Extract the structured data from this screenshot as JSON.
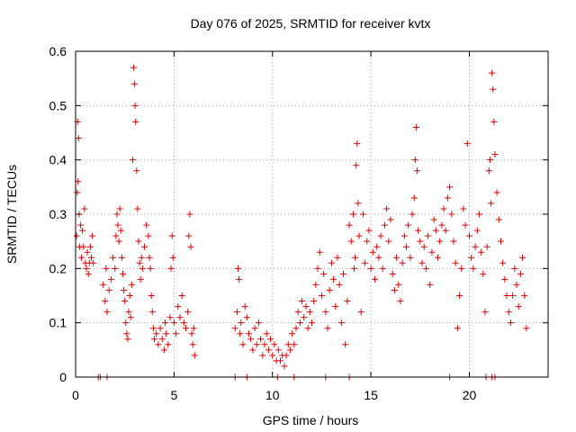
{
  "chart_data": {
    "type": "scatter",
    "title": "Day 076 of 2025, SRMTID for receiver kvtx",
    "xlabel": "GPS time / hours",
    "ylabel": "SRMTID / TECUs",
    "xlim": [
      0,
      24
    ],
    "ylim": [
      0,
      0.6
    ],
    "xticks": [
      0,
      5,
      10,
      15,
      20
    ],
    "yticks": [
      0,
      0.1,
      0.2,
      0.3,
      0.4,
      0.5,
      0.6
    ],
    "xtick_labels": [
      "0",
      "5",
      "10",
      "15",
      "20"
    ],
    "ytick_labels": [
      "0",
      "0.1",
      "0.2",
      "0.3",
      "0.4",
      "0.5",
      "0.6"
    ],
    "grid": true,
    "marker": "+",
    "color": "#e00000",
    "series": [
      {
        "name": "SRMTID",
        "points": [
          [
            0.05,
            0.26
          ],
          [
            0.08,
            0.34
          ],
          [
            0.1,
            0.47
          ],
          [
            0.12,
            0.36
          ],
          [
            0.15,
            0.44
          ],
          [
            0.18,
            0.3
          ],
          [
            0.2,
            0.24
          ],
          [
            0.25,
            0.28
          ],
          [
            0.3,
            0.22
          ],
          [
            0.35,
            0.27
          ],
          [
            0.4,
            0.24
          ],
          [
            0.45,
            0.31
          ],
          [
            0.5,
            0.21
          ],
          [
            0.55,
            0.2
          ],
          [
            0.6,
            0.23
          ],
          [
            0.65,
            0.19
          ],
          [
            0.7,
            0.21
          ],
          [
            0.75,
            0.24
          ],
          [
            0.8,
            0.22
          ],
          [
            0.85,
            0.26
          ],
          [
            0.9,
            0.21
          ],
          [
            1.4,
            0.17
          ],
          [
            1.5,
            0.14
          ],
          [
            1.55,
            0.2
          ],
          [
            1.6,
            0.12
          ],
          [
            1.7,
            0.16
          ],
          [
            1.8,
            0.18
          ],
          [
            1.9,
            0.22
          ],
          [
            2.0,
            0.2
          ],
          [
            2.05,
            0.26
          ],
          [
            2.1,
            0.3
          ],
          [
            2.15,
            0.28
          ],
          [
            2.2,
            0.25
          ],
          [
            2.25,
            0.31
          ],
          [
            2.3,
            0.27
          ],
          [
            2.35,
            0.22
          ],
          [
            2.4,
            0.19
          ],
          [
            2.45,
            0.16
          ],
          [
            2.5,
            0.14
          ],
          [
            2.55,
            0.1
          ],
          [
            2.6,
            0.08
          ],
          [
            2.65,
            0.07
          ],
          [
            2.7,
            0.12
          ],
          [
            2.75,
            0.15
          ],
          [
            2.8,
            0.11
          ],
          [
            2.85,
            0.17
          ],
          [
            2.9,
            0.4
          ],
          [
            2.95,
            0.57
          ],
          [
            3.0,
            0.54
          ],
          [
            3.02,
            0.5
          ],
          [
            3.05,
            0.47
          ],
          [
            3.1,
            0.38
          ],
          [
            3.15,
            0.31
          ],
          [
            3.2,
            0.25
          ],
          [
            3.25,
            0.21
          ],
          [
            3.3,
            0.18
          ],
          [
            3.35,
            0.22
          ],
          [
            3.4,
            0.2
          ],
          [
            3.5,
            0.24
          ],
          [
            3.6,
            0.28
          ],
          [
            3.7,
            0.26
          ],
          [
            3.75,
            0.22
          ],
          [
            3.8,
            0.2
          ],
          [
            3.85,
            0.15
          ],
          [
            3.9,
            0.12
          ],
          [
            3.95,
            0.09
          ],
          [
            4.0,
            0.07
          ],
          [
            4.1,
            0.08
          ],
          [
            4.2,
            0.06
          ],
          [
            4.3,
            0.09
          ],
          [
            4.4,
            0.07
          ],
          [
            4.5,
            0.05
          ],
          [
            4.55,
            0.1
          ],
          [
            4.6,
            0.08
          ],
          [
            4.7,
            0.06
          ],
          [
            4.8,
            0.11
          ],
          [
            4.85,
            0.2
          ],
          [
            4.9,
            0.26
          ],
          [
            4.95,
            0.22
          ],
          [
            5.0,
            0.1
          ],
          [
            5.1,
            0.08
          ],
          [
            5.2,
            0.13
          ],
          [
            5.3,
            0.11
          ],
          [
            5.4,
            0.15
          ],
          [
            5.5,
            0.1
          ],
          [
            5.6,
            0.09
          ],
          [
            5.7,
            0.12
          ],
          [
            5.75,
            0.26
          ],
          [
            5.8,
            0.3
          ],
          [
            5.85,
            0.24
          ],
          [
            5.9,
            0.08
          ],
          [
            5.95,
            0.06
          ],
          [
            6.0,
            0.09
          ],
          [
            6.05,
            0.04
          ],
          [
            8.1,
            0.09
          ],
          [
            8.2,
            0.12
          ],
          [
            8.25,
            0.2
          ],
          [
            8.3,
            0.18
          ],
          [
            8.35,
            0.08
          ],
          [
            8.4,
            0.1
          ],
          [
            8.5,
            0.06
          ],
          [
            8.6,
            0.13
          ],
          [
            8.7,
            0.11
          ],
          [
            8.8,
            0.08
          ],
          [
            8.9,
            0.07
          ],
          [
            9.0,
            0.05
          ],
          [
            9.1,
            0.09
          ],
          [
            9.2,
            0.06
          ],
          [
            9.3,
            0.1
          ],
          [
            9.4,
            0.07
          ],
          [
            9.5,
            0.04
          ],
          [
            9.6,
            0.06
          ],
          [
            9.7,
            0.08
          ],
          [
            9.8,
            0.05
          ],
          [
            9.9,
            0.07
          ],
          [
            10.0,
            0.04
          ],
          [
            10.1,
            0.06
          ],
          [
            10.2,
            0.03
          ],
          [
            10.3,
            0.05
          ],
          [
            10.4,
            0.03
          ],
          [
            10.5,
            0.04
          ],
          [
            10.6,
            0.02
          ],
          [
            10.7,
            0.04
          ],
          [
            10.8,
            0.06
          ],
          [
            10.9,
            0.05
          ],
          [
            11.0,
            0.08
          ],
          [
            11.1,
            0.06
          ],
          [
            11.2,
            0.09
          ],
          [
            11.3,
            0.12
          ],
          [
            11.4,
            0.1
          ],
          [
            11.5,
            0.14
          ],
          [
            11.6,
            0.11
          ],
          [
            11.7,
            0.13
          ],
          [
            11.8,
            0.09
          ],
          [
            11.9,
            0.12
          ],
          [
            12.0,
            0.1
          ],
          [
            12.1,
            0.14
          ],
          [
            12.2,
            0.17
          ],
          [
            12.3,
            0.2
          ],
          [
            12.4,
            0.23
          ],
          [
            12.5,
            0.15
          ],
          [
            12.6,
            0.19
          ],
          [
            12.7,
            0.12
          ],
          [
            12.8,
            0.09
          ],
          [
            12.9,
            0.16
          ],
          [
            13.0,
            0.21
          ],
          [
            13.1,
            0.18
          ],
          [
            13.2,
            0.13
          ],
          [
            13.3,
            0.22
          ],
          [
            13.4,
            0.17
          ],
          [
            13.5,
            0.1
          ],
          [
            13.6,
            0.19
          ],
          [
            13.7,
            0.06
          ],
          [
            13.8,
            0.14
          ],
          [
            13.9,
            0.28
          ],
          [
            14.0,
            0.25
          ],
          [
            14.1,
            0.3
          ],
          [
            14.15,
            0.2
          ],
          [
            14.2,
            0.22
          ],
          [
            14.25,
            0.39
          ],
          [
            14.3,
            0.43
          ],
          [
            14.35,
            0.32
          ],
          [
            14.4,
            0.26
          ],
          [
            14.5,
            0.12
          ],
          [
            14.6,
            0.3
          ],
          [
            14.7,
            0.21
          ],
          [
            14.8,
            0.25
          ],
          [
            14.9,
            0.27
          ],
          [
            15.0,
            0.2
          ],
          [
            15.1,
            0.23
          ],
          [
            15.2,
            0.18
          ],
          [
            15.3,
            0.24
          ],
          [
            15.4,
            0.22
          ],
          [
            15.5,
            0.26
          ],
          [
            15.6,
            0.2
          ],
          [
            15.7,
            0.28
          ],
          [
            15.8,
            0.31
          ],
          [
            15.9,
            0.25
          ],
          [
            16.0,
            0.29
          ],
          [
            16.1,
            0.19
          ],
          [
            16.2,
            0.16
          ],
          [
            16.3,
            0.22
          ],
          [
            16.4,
            0.17
          ],
          [
            16.5,
            0.14
          ],
          [
            16.6,
            0.21
          ],
          [
            16.7,
            0.26
          ],
          [
            16.8,
            0.24
          ],
          [
            16.9,
            0.28
          ],
          [
            17.0,
            0.22
          ],
          [
            17.1,
            0.3
          ],
          [
            17.2,
            0.33
          ],
          [
            17.25,
            0.4
          ],
          [
            17.3,
            0.46
          ],
          [
            17.35,
            0.38
          ],
          [
            17.4,
            0.27
          ],
          [
            17.5,
            0.25
          ],
          [
            17.6,
            0.21
          ],
          [
            17.7,
            0.24
          ],
          [
            17.8,
            0.2
          ],
          [
            17.9,
            0.26
          ],
          [
            18.0,
            0.17
          ],
          [
            18.1,
            0.23
          ],
          [
            18.2,
            0.29
          ],
          [
            18.3,
            0.27
          ],
          [
            18.4,
            0.22
          ],
          [
            18.5,
            0.25
          ],
          [
            18.6,
            0.28
          ],
          [
            18.7,
            0.31
          ],
          [
            18.8,
            0.27
          ],
          [
            18.9,
            0.33
          ],
          [
            19.0,
            0.35
          ],
          [
            19.1,
            0.3
          ],
          [
            19.2,
            0.25
          ],
          [
            19.3,
            0.21
          ],
          [
            19.4,
            0.09
          ],
          [
            19.5,
            0.15
          ],
          [
            19.6,
            0.2
          ],
          [
            19.7,
            0.31
          ],
          [
            19.8,
            0.28
          ],
          [
            19.9,
            0.43
          ],
          [
            20.0,
            0.26
          ],
          [
            20.1,
            0.22
          ],
          [
            20.2,
            0.2
          ],
          [
            20.3,
            0.24
          ],
          [
            20.4,
            0.27
          ],
          [
            20.5,
            0.3
          ],
          [
            20.6,
            0.23
          ],
          [
            20.7,
            0.19
          ],
          [
            20.8,
            0.12
          ],
          [
            20.9,
            0.24
          ],
          [
            21.0,
            0.38
          ],
          [
            21.05,
            0.4
          ],
          [
            21.1,
            0.32
          ],
          [
            21.15,
            0.56
          ],
          [
            21.2,
            0.53
          ],
          [
            21.25,
            0.47
          ],
          [
            21.3,
            0.41
          ],
          [
            21.4,
            0.34
          ],
          [
            21.5,
            0.29
          ],
          [
            21.6,
            0.25
          ],
          [
            21.7,
            0.21
          ],
          [
            21.8,
            0.18
          ],
          [
            21.9,
            0.15
          ],
          [
            22.0,
            0.12
          ],
          [
            22.1,
            0.1
          ],
          [
            22.2,
            0.15
          ],
          [
            22.3,
            0.2
          ],
          [
            22.4,
            0.17
          ],
          [
            22.5,
            0.13
          ],
          [
            22.6,
            0.19
          ],
          [
            22.7,
            0.22
          ],
          [
            22.8,
            0.15
          ],
          [
            22.9,
            0.09
          ],
          [
            1.15,
            0.0
          ],
          [
            1.25,
            0.0
          ],
          [
            1.6,
            0.0
          ],
          [
            8.1,
            0.0
          ],
          [
            8.7,
            0.0
          ],
          [
            10.25,
            0.0
          ],
          [
            11.1,
            0.0
          ],
          [
            12.7,
            0.0
          ],
          [
            13.9,
            0.0
          ],
          [
            19.0,
            0.0
          ],
          [
            20.85,
            0.0
          ],
          [
            21.15,
            0.0
          ],
          [
            21.3,
            0.0
          ]
        ]
      }
    ]
  }
}
